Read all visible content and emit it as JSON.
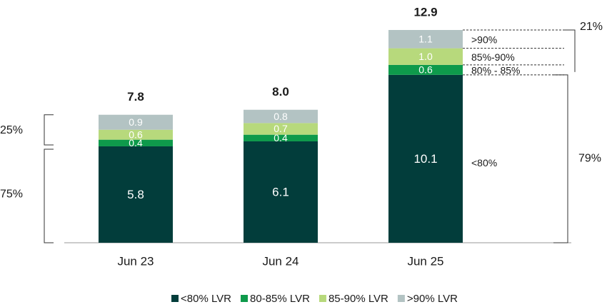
{
  "chart_data": {
    "type": "stacked_bar",
    "categories": [
      "Jun 23",
      "Jun 24",
      "Jun 25"
    ],
    "series": [
      {
        "name": "<80% LVR",
        "color": "#023d3b",
        "values": [
          5.8,
          6.1,
          10.1
        ],
        "value_labels": [
          "5.8",
          "6.1",
          "10.1"
        ]
      },
      {
        "name": "80-85% LVR",
        "color": "#0e9a4b",
        "values": [
          0.4,
          0.4,
          0.6
        ],
        "value_labels": [
          "0.4",
          "0.4",
          "0.6"
        ]
      },
      {
        "name": "85-90% LVR",
        "color": "#b7d97c",
        "values": [
          0.6,
          0.7,
          1.0
        ],
        "value_labels": [
          "0.6",
          "0.7",
          "1.0"
        ]
      },
      {
        "name": ">90% LVR",
        "color": "#b3c3c3",
        "values": [
          0.9,
          0.8,
          1.1
        ],
        "value_labels": [
          "0.9",
          "0.8",
          "1.1"
        ]
      }
    ],
    "totals": [
      7.8,
      8.0,
      12.9
    ],
    "total_labels": [
      "7.8",
      "8.0",
      "12.9"
    ],
    "annotations": {
      "left": [
        "75%",
        "25%"
      ],
      "right": [
        "79%",
        "21%"
      ],
      "segments": [
        "<80%",
        "80% - 85%",
        "85%-90%",
        ">90%"
      ]
    }
  }
}
